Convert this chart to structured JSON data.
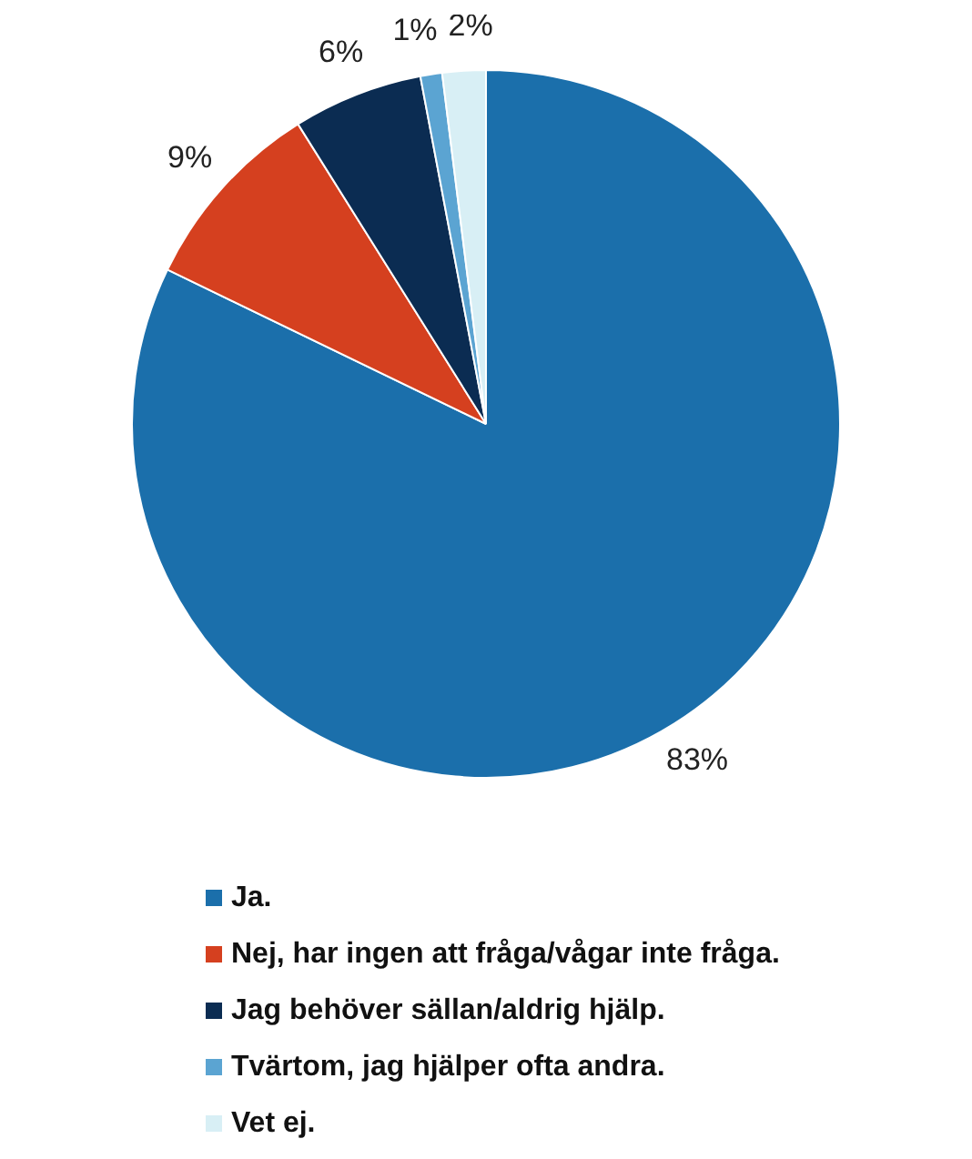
{
  "chart_data": {
    "type": "pie",
    "categories": [
      "Ja.",
      "Nej, har ingen att fråga/vågar inte fråga.",
      "Jag behöver sällan/aldrig hjälp.",
      "Tvärtom, jag hjälper ofta andra.",
      "Vet ej."
    ],
    "values": [
      83,
      9,
      6,
      1,
      2
    ],
    "colors": [
      "#1b6fab",
      "#d5401f",
      "#0b2c52",
      "#5ba4d2",
      "#d8eff5"
    ],
    "value_labels": [
      "83%",
      "9%",
      "6%",
      "1%",
      "2%"
    ],
    "legend": "bottom"
  }
}
